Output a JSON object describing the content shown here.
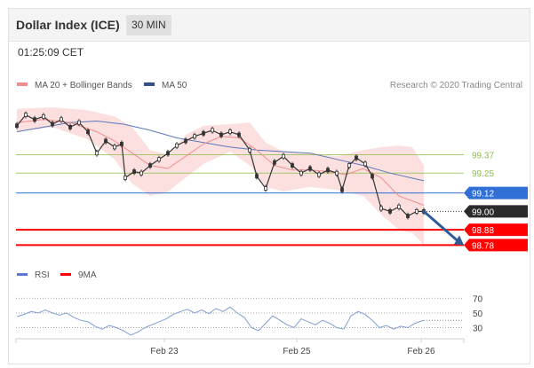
{
  "header": {
    "title": "Dollar Index (ICE)",
    "timeframe": "30 MIN"
  },
  "timestamp": "01:25:09 CET",
  "legend": {
    "ma20": "MA 20 + Bollinger Bands",
    "ma50": "MA 50",
    "credit": "Research © 2020 Trading Central"
  },
  "rsi_legend": {
    "rsi": "RSI",
    "ma9": "9MA"
  },
  "colors": {
    "ma20": "#f28c8c",
    "band": "#fbd6d6",
    "ma50": "#5b78b8",
    "green": "#8cc04a",
    "blue": "#2f6fd6",
    "red": "#ff0000",
    "dark": "#2b2b2b",
    "candle": "#333333",
    "rsi": "#7f9ed6"
  },
  "chart_data": [
    {
      "type": "line",
      "title": "",
      "y_range": [
        98.655,
        99.755
      ],
      "x_labels": [
        "Feb 23",
        "Feb 25",
        "Feb 26"
      ],
      "levels": [
        {
          "value": 99.37,
          "label": "99.37",
          "kind": "resistance",
          "color": "#8cc04a"
        },
        {
          "value": 99.25,
          "label": "99.25",
          "kind": "resistance",
          "color": "#8cc04a"
        },
        {
          "value": 99.12,
          "label": "99.12",
          "kind": "pivot",
          "color": "#2f6fd6"
        },
        {
          "value": 99.0,
          "label": "99.00",
          "kind": "last",
          "color": "#2b2b2b"
        },
        {
          "value": 98.88,
          "label": "98.88",
          "kind": "support",
          "color": "#ff0000"
        },
        {
          "value": 98.78,
          "label": "98.78",
          "kind": "support",
          "color": "#ff0000"
        }
      ],
      "price_series": [
        [
          0,
          99.56
        ],
        [
          10,
          99.63
        ],
        [
          20,
          99.6
        ],
        [
          30,
          99.62
        ],
        [
          40,
          99.57
        ],
        [
          50,
          99.6
        ],
        [
          60,
          99.55
        ],
        [
          70,
          99.58
        ],
        [
          80,
          99.52
        ],
        [
          90,
          99.38
        ],
        [
          100,
          99.46
        ],
        [
          110,
          99.42
        ],
        [
          118,
          99.44
        ],
        [
          122,
          99.22
        ],
        [
          132,
          99.26
        ],
        [
          140,
          99.25
        ],
        [
          150,
          99.3
        ],
        [
          160,
          99.34
        ],
        [
          170,
          99.38
        ],
        [
          180,
          99.43
        ],
        [
          190,
          99.46
        ],
        [
          200,
          99.49
        ],
        [
          210,
          99.51
        ],
        [
          220,
          99.53
        ],
        [
          230,
          99.5
        ],
        [
          240,
          99.52
        ],
        [
          250,
          99.5
        ],
        [
          262,
          99.4
        ],
        [
          270,
          99.23
        ],
        [
          280,
          99.15
        ],
        [
          290,
          99.32
        ],
        [
          300,
          99.36
        ],
        [
          310,
          99.3
        ],
        [
          320,
          99.25
        ],
        [
          330,
          99.28
        ],
        [
          340,
          99.24
        ],
        [
          350,
          99.27
        ],
        [
          360,
          99.25
        ],
        [
          366,
          99.14
        ],
        [
          374,
          99.3
        ],
        [
          382,
          99.35
        ],
        [
          392,
          99.31
        ],
        [
          400,
          99.23
        ],
        [
          410,
          99.02
        ],
        [
          420,
          99.0
        ],
        [
          430,
          99.03
        ],
        [
          440,
          98.97
        ],
        [
          450,
          99.0
        ],
        [
          458,
          99.0
        ]
      ],
      "ma20_series": [
        [
          0,
          99.58
        ],
        [
          30,
          99.6
        ],
        [
          60,
          99.58
        ],
        [
          90,
          99.52
        ],
        [
          110,
          99.46
        ],
        [
          130,
          99.38
        ],
        [
          150,
          99.3
        ],
        [
          170,
          99.28
        ],
        [
          190,
          99.36
        ],
        [
          210,
          99.44
        ],
        [
          230,
          99.49
        ],
        [
          250,
          99.48
        ],
        [
          270,
          99.4
        ],
        [
          290,
          99.3
        ],
        [
          310,
          99.27
        ],
        [
          330,
          99.27
        ],
        [
          350,
          99.26
        ],
        [
          370,
          99.24
        ],
        [
          390,
          99.28
        ],
        [
          410,
          99.22
        ],
        [
          430,
          99.1
        ],
        [
          458,
          99.04
        ]
      ],
      "ma50_series": [
        [
          0,
          99.52
        ],
        [
          30,
          99.55
        ],
        [
          60,
          99.58
        ],
        [
          90,
          99.59
        ],
        [
          120,
          99.57
        ],
        [
          150,
          99.53
        ],
        [
          180,
          99.48
        ],
        [
          210,
          99.45
        ],
        [
          240,
          99.42
        ],
        [
          270,
          99.4
        ],
        [
          300,
          99.39
        ],
        [
          330,
          99.38
        ],
        [
          360,
          99.34
        ],
        [
          390,
          99.3
        ],
        [
          420,
          99.25
        ],
        [
          458,
          99.2
        ]
      ],
      "band_upper": [
        [
          0,
          99.67
        ],
        [
          40,
          99.68
        ],
        [
          80,
          99.66
        ],
        [
          110,
          99.62
        ],
        [
          130,
          99.55
        ],
        [
          150,
          99.4
        ],
        [
          170,
          99.37
        ],
        [
          190,
          99.5
        ],
        [
          210,
          99.56
        ],
        [
          240,
          99.57
        ],
        [
          262,
          99.58
        ],
        [
          280,
          99.45
        ],
        [
          300,
          99.39
        ],
        [
          330,
          99.38
        ],
        [
          360,
          99.36
        ],
        [
          390,
          99.4
        ],
        [
          410,
          99.42
        ],
        [
          430,
          99.43
        ],
        [
          445,
          99.42
        ],
        [
          458,
          99.3
        ]
      ],
      "band_lower": [
        [
          0,
          99.52
        ],
        [
          40,
          99.55
        ],
        [
          80,
          99.47
        ],
        [
          110,
          99.34
        ],
        [
          130,
          99.18
        ],
        [
          150,
          99.1
        ],
        [
          170,
          99.13
        ],
        [
          190,
          99.22
        ],
        [
          210,
          99.31
        ],
        [
          240,
          99.39
        ],
        [
          262,
          99.3
        ],
        [
          280,
          99.16
        ],
        [
          300,
          99.13
        ],
        [
          330,
          99.16
        ],
        [
          360,
          99.14
        ],
        [
          390,
          99.1
        ],
        [
          410,
          98.98
        ],
        [
          430,
          98.88
        ],
        [
          445,
          98.86
        ],
        [
          458,
          98.78
        ]
      ],
      "forecast_arrow": {
        "from": [
          458,
          99.0
        ],
        "to": [
          503,
          98.78
        ]
      }
    },
    {
      "type": "line",
      "title": "",
      "y_range": [
        15,
        80
      ],
      "y_ticks": [
        70,
        50,
        30
      ],
      "rsi_series": [
        [
          0,
          45
        ],
        [
          8,
          48
        ],
        [
          16,
          52
        ],
        [
          24,
          50
        ],
        [
          32,
          54
        ],
        [
          40,
          50
        ],
        [
          48,
          47
        ],
        [
          56,
          50
        ],
        [
          64,
          44
        ],
        [
          72,
          40
        ],
        [
          80,
          38
        ],
        [
          88,
          32
        ],
        [
          96,
          28
        ],
        [
          104,
          33
        ],
        [
          112,
          30
        ],
        [
          120,
          26
        ],
        [
          128,
          20
        ],
        [
          136,
          24
        ],
        [
          144,
          30
        ],
        [
          152,
          34
        ],
        [
          160,
          38
        ],
        [
          168,
          42
        ],
        [
          176,
          48
        ],
        [
          184,
          52
        ],
        [
          192,
          55
        ],
        [
          200,
          50
        ],
        [
          208,
          54
        ],
        [
          216,
          49
        ],
        [
          224,
          56
        ],
        [
          232,
          52
        ],
        [
          240,
          58
        ],
        [
          248,
          50
        ],
        [
          256,
          44
        ],
        [
          264,
          30
        ],
        [
          272,
          26
        ],
        [
          280,
          36
        ],
        [
          288,
          46
        ],
        [
          296,
          40
        ],
        [
          304,
          34
        ],
        [
          312,
          30
        ],
        [
          320,
          42
        ],
        [
          328,
          38
        ],
        [
          336,
          34
        ],
        [
          344,
          40
        ],
        [
          352,
          36
        ],
        [
          360,
          30
        ],
        [
          368,
          28
        ],
        [
          376,
          46
        ],
        [
          384,
          52
        ],
        [
          392,
          48
        ],
        [
          400,
          40
        ],
        [
          408,
          30
        ],
        [
          416,
          33
        ],
        [
          424,
          28
        ],
        [
          432,
          32
        ],
        [
          440,
          30
        ],
        [
          448,
          36
        ],
        [
          458,
          40
        ]
      ]
    }
  ]
}
